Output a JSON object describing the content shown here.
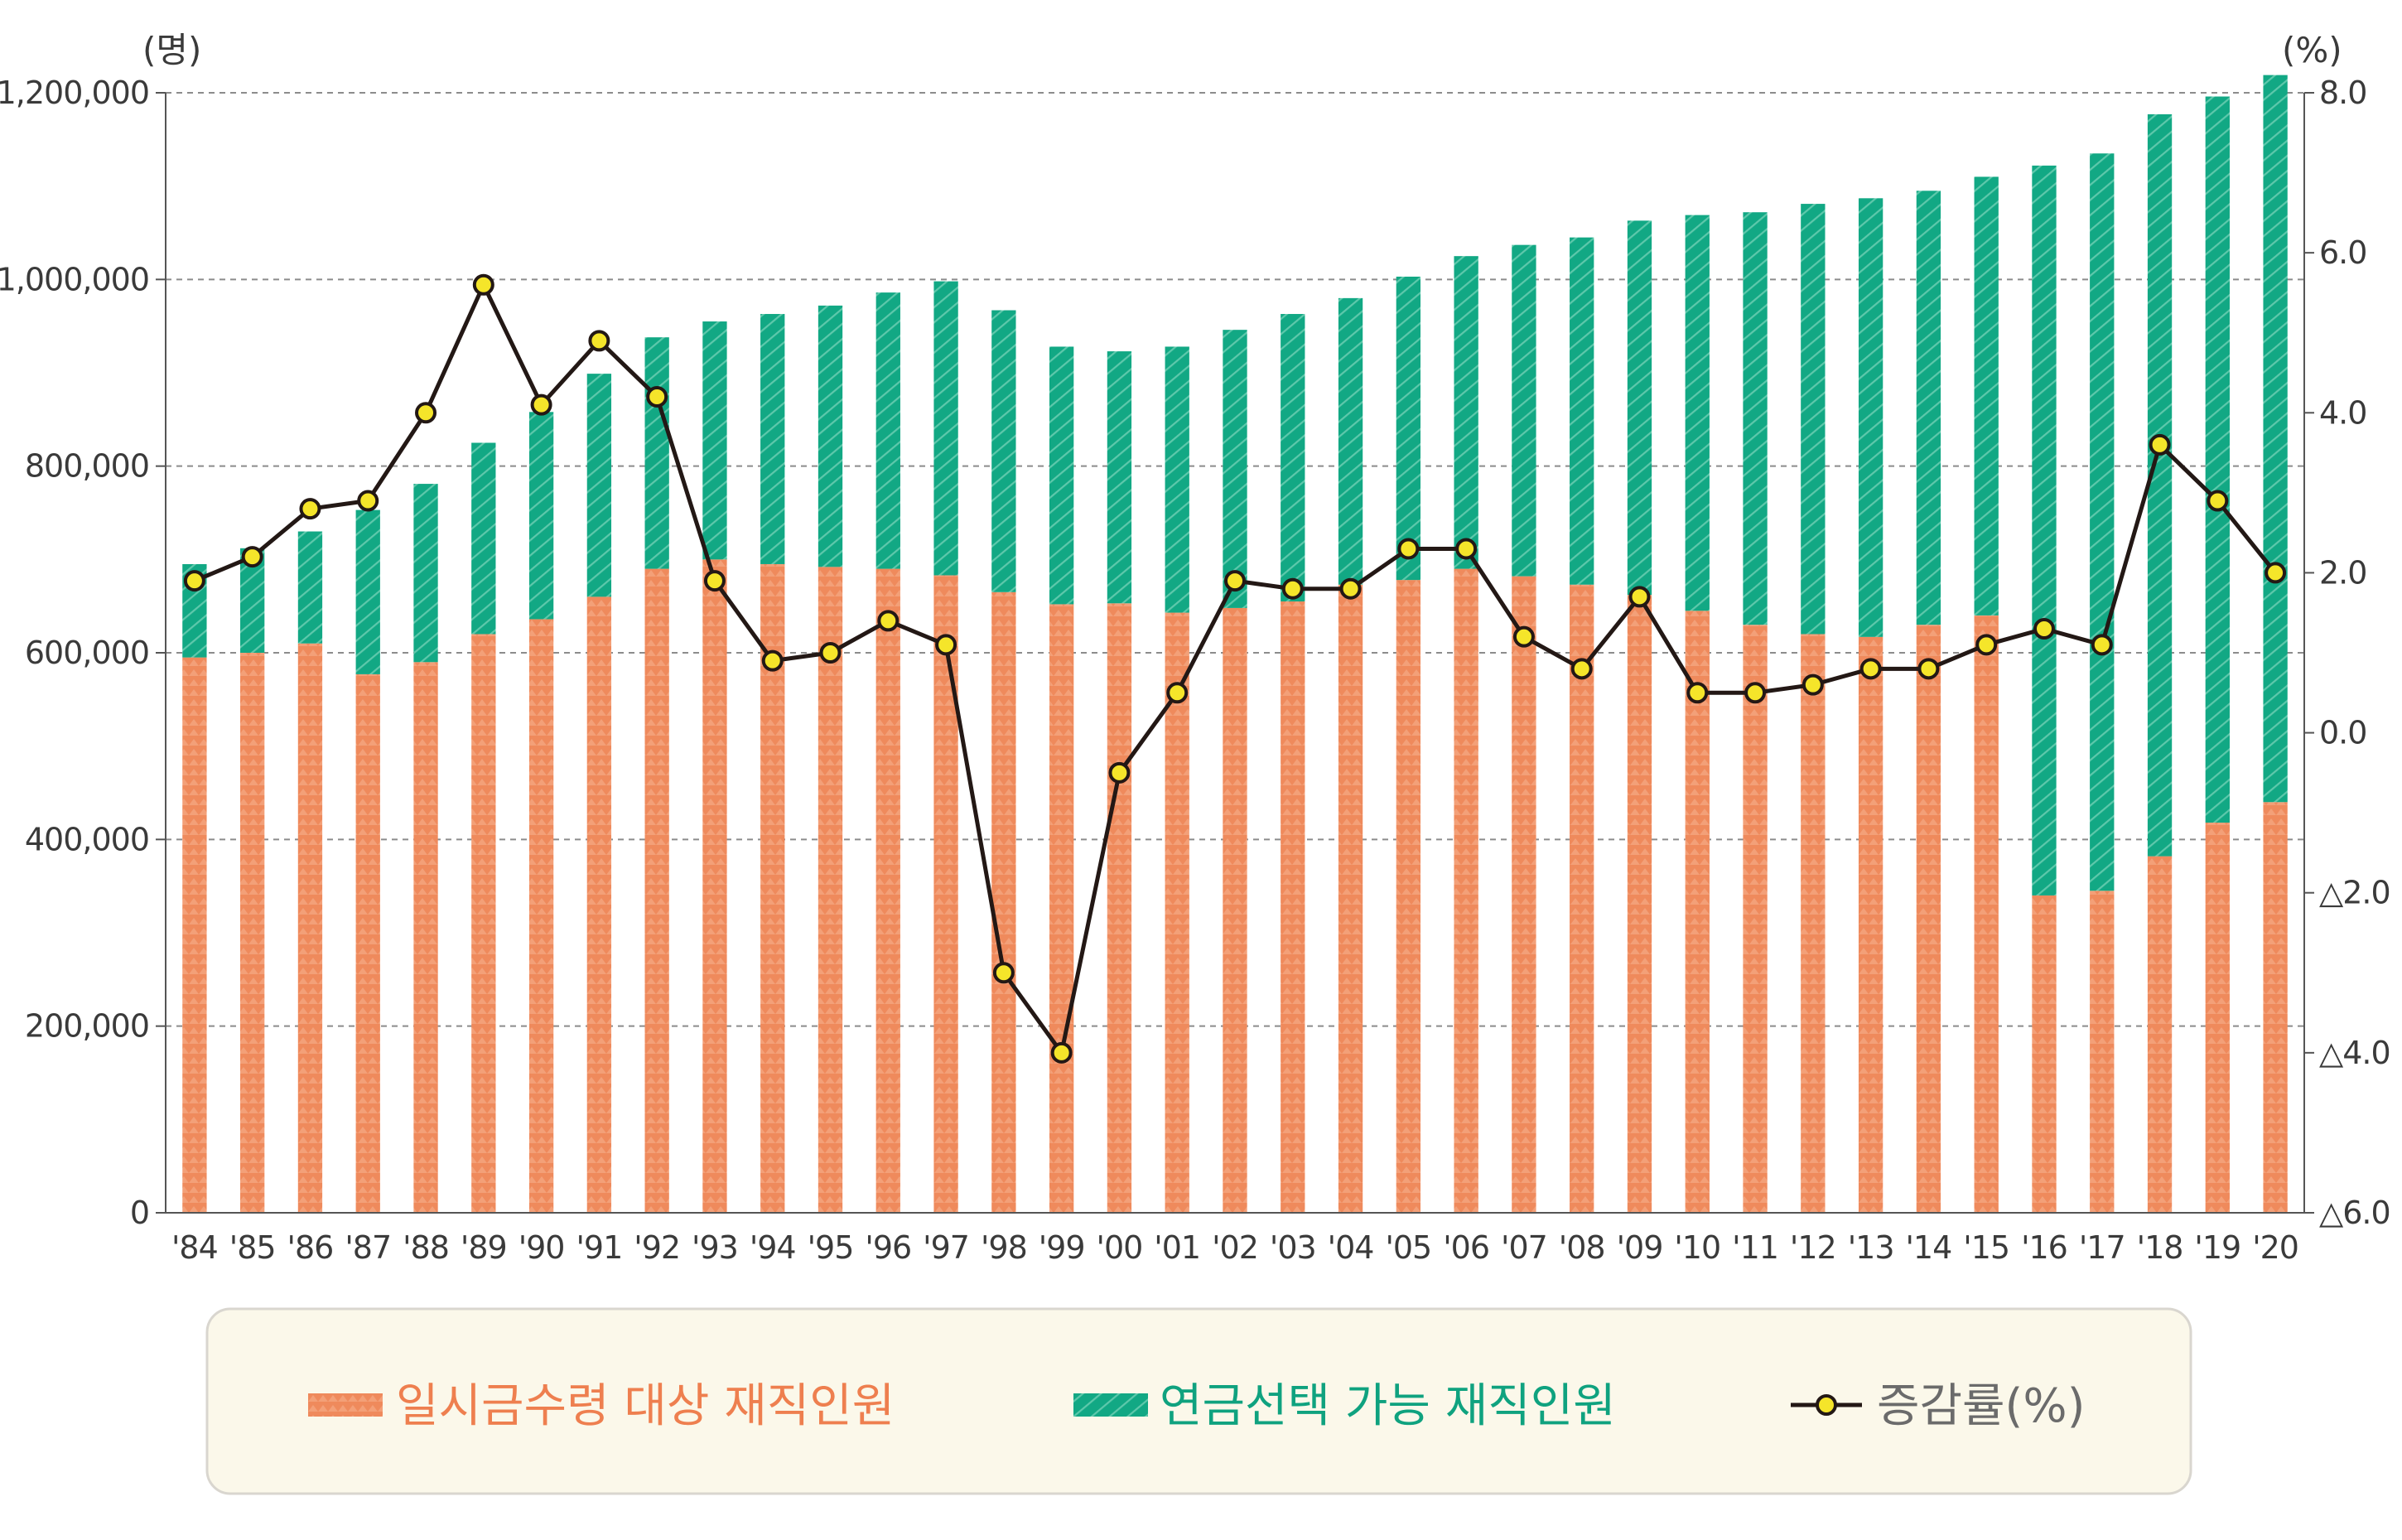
{
  "chart_data": {
    "type": "bar",
    "stacked": true,
    "categories": [
      "'84",
      "'85",
      "'86",
      "'87",
      "'88",
      "'89",
      "'90",
      "'91",
      "'92",
      "'93",
      "'94",
      "'95",
      "'96",
      "'97",
      "'98",
      "'99",
      "'00",
      "'01",
      "'02",
      "'03",
      "'04",
      "'05",
      "'06",
      "'07",
      "'08",
      "'09",
      "'10",
      "'11",
      "'12",
      "'13",
      "'14",
      "'15",
      "'16",
      "'17",
      "'18",
      "'19",
      "'20"
    ],
    "series": [
      {
        "name": "일시금수령 대상 재직인원",
        "kind": "bar",
        "axis": "left",
        "color": "#ef8a5c",
        "values": [
          595000,
          600000,
          610000,
          577000,
          590000,
          620000,
          636000,
          660000,
          690000,
          700000,
          695000,
          692000,
          690000,
          683000,
          665000,
          652000,
          653000,
          643000,
          648000,
          655000,
          673000,
          678000,
          690000,
          682000,
          673000,
          662000,
          645000,
          630000,
          620000,
          617000,
          630000,
          640000,
          340000,
          345000,
          382000,
          418000,
          440000
        ]
      },
      {
        "name": "연금선택 가능 재직인원",
        "kind": "bar",
        "axis": "left",
        "color": "#12a884",
        "values": [
          100000,
          112000,
          120000,
          176000,
          191000,
          205000,
          222000,
          239000,
          248000,
          255000,
          268000,
          280000,
          296000,
          315000,
          302000,
          276000,
          270000,
          285000,
          298000,
          308000,
          307000,
          325000,
          335000,
          355000,
          372000,
          401000,
          424000,
          442000,
          461000,
          470000,
          465000,
          470000,
          782000,
          790000,
          795000,
          778000,
          779000
        ]
      },
      {
        "name": "증감률(%)",
        "kind": "line",
        "axis": "right",
        "color": "#231815",
        "marker_color": "#f5e52a",
        "values": [
          1.9,
          2.2,
          2.8,
          2.9,
          4.0,
          5.6,
          4.1,
          4.9,
          4.2,
          1.9,
          0.9,
          1.0,
          1.4,
          1.1,
          -3.0,
          -4.0,
          -0.5,
          0.5,
          1.9,
          1.8,
          1.8,
          2.3,
          2.3,
          1.2,
          0.8,
          1.7,
          0.5,
          0.5,
          0.6,
          0.8,
          0.8,
          1.1,
          1.3,
          1.1,
          3.6,
          2.9,
          2.0
        ]
      }
    ],
    "y_left": {
      "unit_label": "(명)",
      "ylim": [
        0,
        1200000
      ],
      "ticks": [
        0,
        200000,
        400000,
        600000,
        800000,
        1000000,
        1200000
      ],
      "tick_labels": [
        "0",
        "200,000",
        "400,000",
        "600,000",
        "800,000",
        "1,000,000",
        "1,200,000"
      ]
    },
    "y_right": {
      "unit_label": "(%)",
      "ylim": [
        -6,
        8
      ],
      "ticks": [
        -6,
        -4,
        -2,
        0,
        2,
        4,
        6,
        8
      ],
      "tick_labels": [
        "△6.0",
        "△4.0",
        "△2.0",
        "0.0",
        "2.0",
        "4.0",
        "6.0",
        "8.0"
      ]
    },
    "grid": "dashed horizontal",
    "legend": {
      "placement": "bottom",
      "items": [
        {
          "label": "일시금수령 대상 재직인원",
          "color": "#ef8a5c"
        },
        {
          "label": "연금선택 가능 재직인원",
          "color": "#12a884"
        },
        {
          "label": "증감률(%)",
          "color": "#6b6b6b"
        }
      ],
      "background": "#fbf8ea"
    }
  }
}
